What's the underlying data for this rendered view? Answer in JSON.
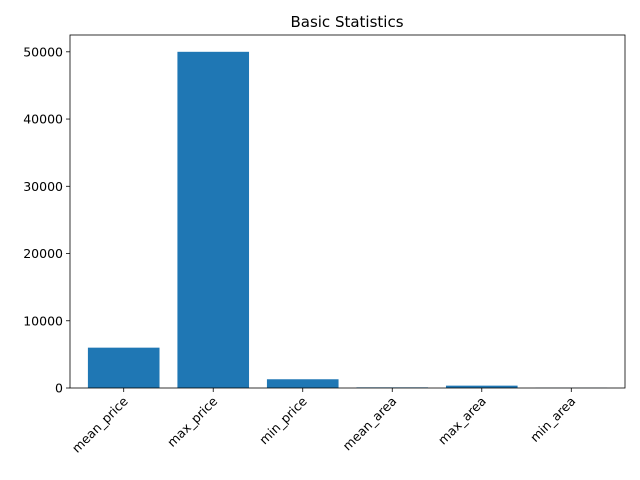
{
  "chart_data": {
    "type": "bar",
    "title": "Basic Statistics",
    "xlabel": "",
    "ylabel": "",
    "categories": [
      "mean_price",
      "max_price",
      "min_price",
      "mean_area",
      "max_area",
      "min_area"
    ],
    "values": [
      6000,
      50000,
      1300,
      90,
      350,
      25
    ],
    "ylim": [
      0,
      52500
    ],
    "yticks": [
      0,
      10000,
      20000,
      30000,
      40000,
      50000
    ],
    "xtick_rotation": 45,
    "bar_color": "#1f77b4",
    "grid": false,
    "legend": "none"
  }
}
